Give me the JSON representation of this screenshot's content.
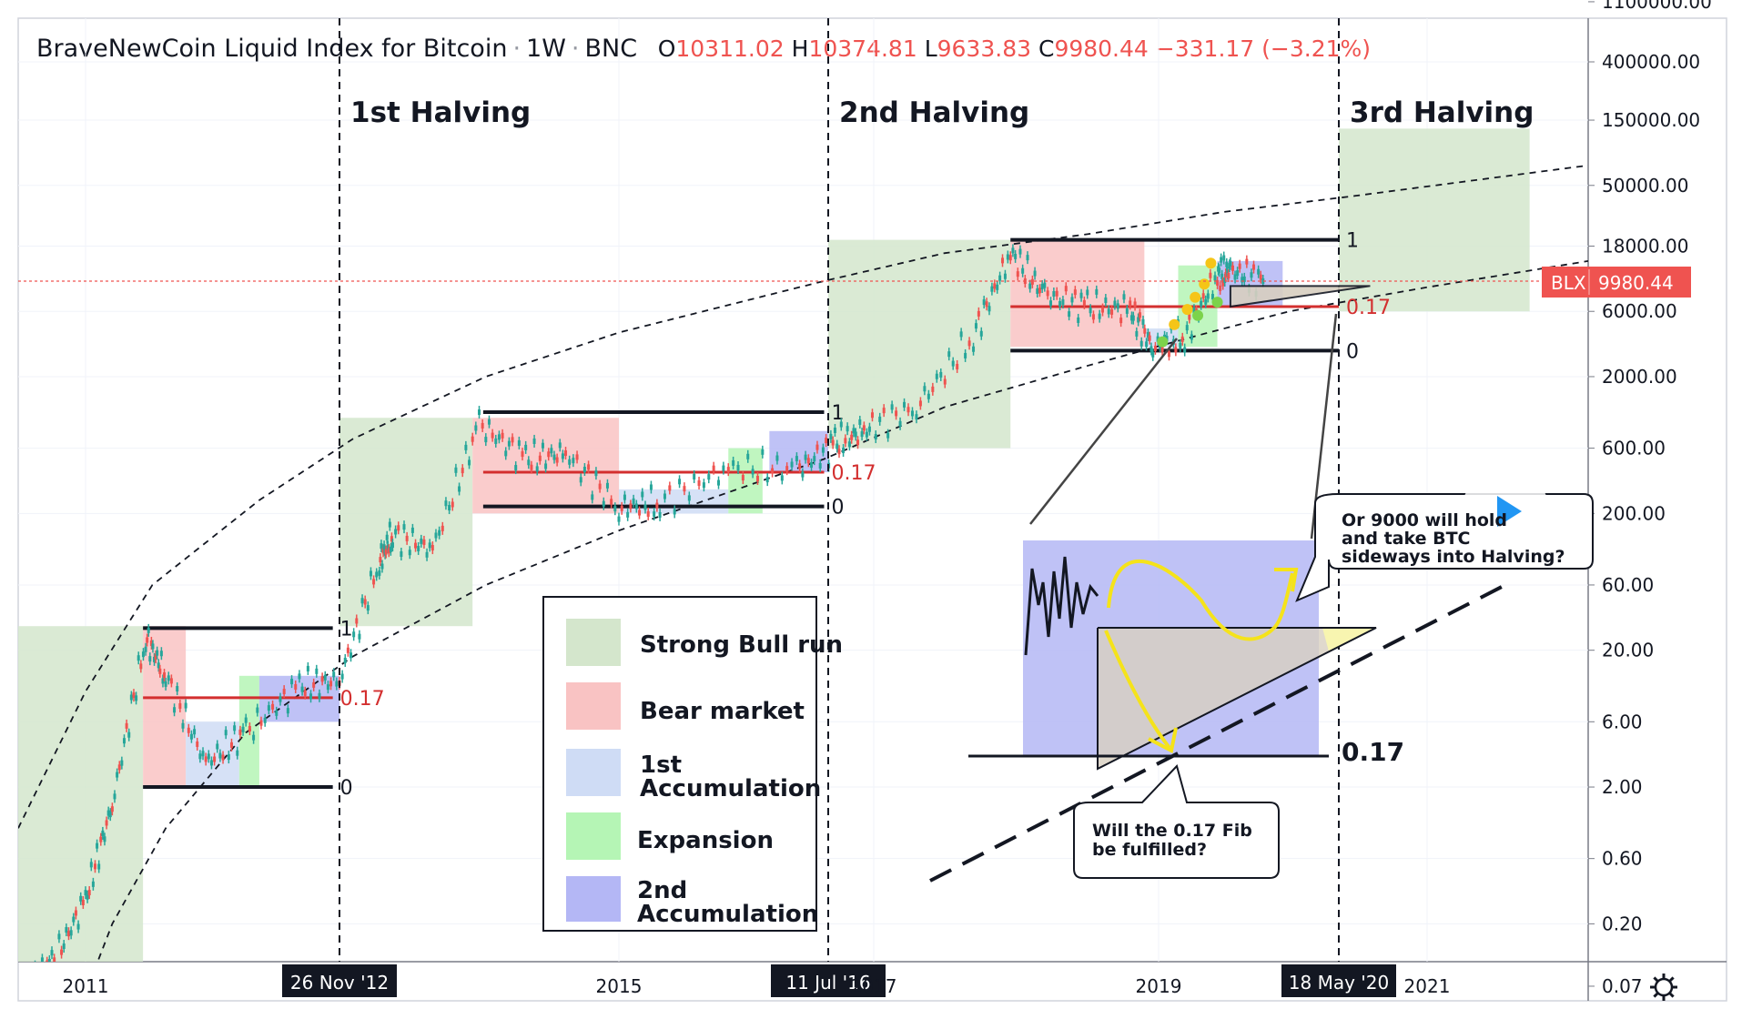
{
  "header": {
    "title": "BraveNewCoin Liquid Index for Bitcoin",
    "interval": "1W",
    "exchange": "BNC",
    "o_label": "O",
    "o_value": "10311.02",
    "h_label": "H",
    "h_value": "10374.81",
    "l_label": "L",
    "l_value": "9633.83",
    "c_label": "C",
    "c_value": "9980.44",
    "change": "−331.17 (−3.21%)"
  },
  "price_label": {
    "symbol": "BLX",
    "value": "9980.44",
    "color": "#ef5350"
  },
  "settings_icon": "gear-icon",
  "chart_data": {
    "type": "line",
    "title": "BraveNewCoin Liquid Index for Bitcoin",
    "y_scale": "log",
    "ylim": [
      0.03,
      1100000
    ],
    "y_ticks": [
      "1100000.00",
      "400000.00",
      "150000.00",
      "50000.00",
      "18000.00",
      "6000.00",
      "2000.00",
      "600.00",
      "200.00",
      "60.00",
      "20.00",
      "6.00",
      "2.00",
      "0.60",
      "0.20",
      "0.07"
    ],
    "x_ticks": [
      "2011",
      "2015",
      "2017",
      "2019",
      "2021"
    ],
    "halvings": [
      {
        "label": "1st Halving",
        "date": "26 Nov '12"
      },
      {
        "label": "2nd Halving",
        "date": "11 Jul '16"
      },
      {
        "label": "3rd Halving",
        "date": "18 May '20"
      }
    ],
    "series": [
      {
        "name": "BLX",
        "x": [
          2010.6,
          2010.8,
          2011.0,
          2011.2,
          2011.45,
          2011.6,
          2011.9,
          2012.2,
          2012.6,
          2012.9,
          2013.2,
          2013.3,
          2013.6,
          2013.95,
          2014.3,
          2014.6,
          2015.0,
          2015.3,
          2015.8,
          2016.3,
          2016.6,
          2016.9,
          2017.3,
          2017.7,
          2017.96,
          2018.2,
          2018.5,
          2018.8,
          2018.96,
          2019.2,
          2019.45,
          2019.55,
          2019.8
        ],
        "y": [
          0.06,
          0.1,
          0.3,
          1.5,
          25,
          13,
          3,
          5,
          11,
          12,
          90,
          140,
          110,
          900,
          500,
          550,
          220,
          240,
          430,
          420,
          650,
          800,
          1200,
          4000,
          16000,
          8000,
          6500,
          6200,
          3300,
          4000,
          11000,
          12000,
          9980
        ]
      }
    ],
    "fib_levels": [
      "1",
      "0.17",
      "0"
    ],
    "legend": [
      {
        "label": "Strong Bull run",
        "color": "#d4e6cc"
      },
      {
        "label": "Bear market",
        "color": "#f9c3c3"
      },
      {
        "label": "1st Accumulation",
        "color": "#cfdcf5"
      },
      {
        "label": "Expansion",
        "color": "#b5f5b5"
      },
      {
        "label": "2nd Accumulation",
        "color": "#b4b7f5"
      }
    ],
    "inset_fib_label": "0.17",
    "annotations": [
      "Will the 0.17 Fib be fulfilled?",
      "Or 9000 will hold and take BTC sideways into Halving?"
    ]
  },
  "legend_labels": {
    "bull": "Strong Bull run",
    "bear": "Bear market",
    "acc1_a": "1st",
    "acc1_b": "Accumulation",
    "exp": "Expansion",
    "acc2_a": "2nd",
    "acc2_b": "Accumulation"
  },
  "notes": {
    "q1_a": "Will the 0.17 Fib",
    "q1_b": "be fulfilled?",
    "q2_a": "Or 9000 will hold",
    "q2_b": "and take BTC",
    "q2_c": "sideways into Halving?"
  }
}
